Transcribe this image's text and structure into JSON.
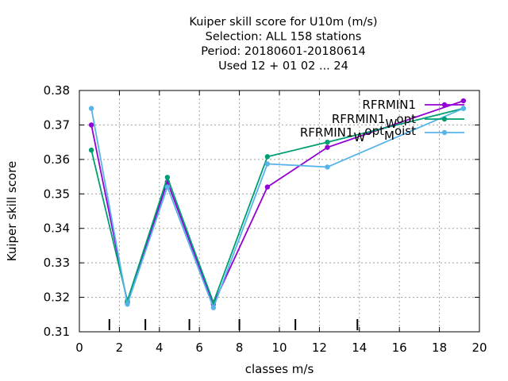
{
  "chart_data": {
    "type": "line",
    "title_lines": [
      "Kuiper skill score  for U10m (m/s)",
      "Selection: ALL    158 stations",
      "Period: 20180601-20180614",
      "Used  12 + 01 02 ... 24"
    ],
    "xlabel": "classes m/s",
    "ylabel": "Kuiper skill score",
    "xlim": [
      0,
      20
    ],
    "ylim": [
      0.31,
      0.38
    ],
    "x_ticks": [
      "0",
      "2",
      "4",
      "6",
      "8",
      "10",
      "12",
      "14",
      "16",
      "18",
      "20"
    ],
    "y_ticks": [
      "0.31",
      "0.32",
      "0.33",
      "0.34",
      "0.35",
      "0.36",
      "0.37",
      "0.38"
    ],
    "grid": true,
    "legend_position": "top-right",
    "class_bounds": [
      1.5,
      3.3,
      5.5,
      8.0,
      10.8,
      13.9
    ],
    "series": [
      {
        "name": "RFRMIN1",
        "color": "#9400d3",
        "x": [
          0.6,
          2.4,
          4.4,
          6.7,
          9.4,
          12.4,
          19.2
        ],
        "y": [
          0.37,
          0.3185,
          0.3535,
          0.318,
          0.352,
          0.3635,
          0.377
        ]
      },
      {
        "name": "RFRMIN1",
        "name_sub": "W",
        "name_tail": "opt",
        "color": "#009e73",
        "x": [
          0.6,
          2.4,
          4.4,
          6.7,
          9.4,
          12.4,
          19.2
        ],
        "y": [
          0.3627,
          0.319,
          0.3548,
          0.3185,
          0.3608,
          0.365,
          0.3748
        ]
      },
      {
        "name": "RFRMIN1",
        "name_sub": "W",
        "name_mid": "opt",
        "name_sub2": "M",
        "name_tail": "oist",
        "color": "#56b4e9",
        "x": [
          0.6,
          2.4,
          4.4,
          6.7,
          9.4,
          12.4,
          19.2
        ],
        "y": [
          0.3748,
          0.318,
          0.352,
          0.317,
          0.3587,
          0.3578,
          0.3748
        ]
      }
    ]
  }
}
